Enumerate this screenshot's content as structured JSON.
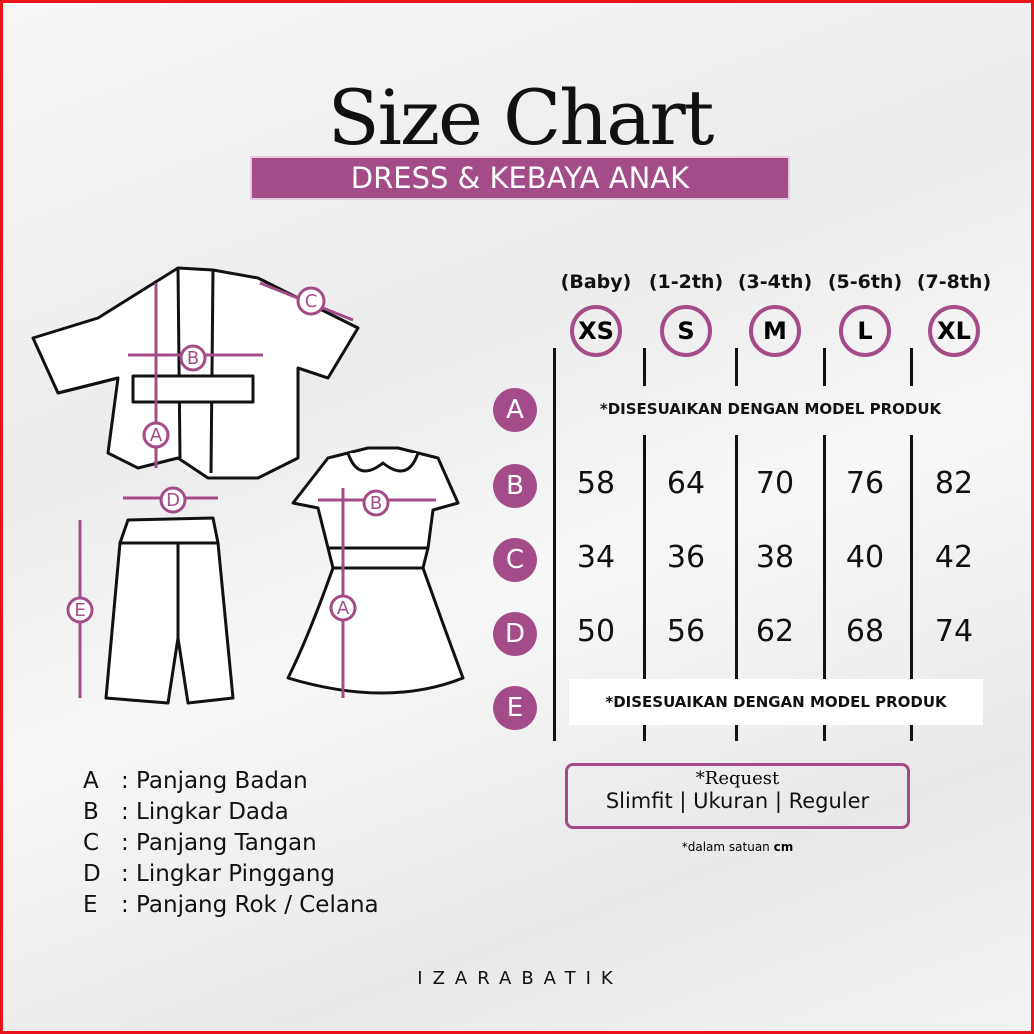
{
  "title": "Size Chart",
  "subtitle": "DRESS & KEBAYA ANAK",
  "colors": {
    "accent": "#a44c88",
    "frame": "#e8141b"
  },
  "sizes": [
    {
      "age": "(Baby)",
      "size": "XS"
    },
    {
      "age": "(1-2th)",
      "size": "S"
    },
    {
      "age": "(3-4th)",
      "size": "M"
    },
    {
      "age": "(5-6th)",
      "size": "L"
    },
    {
      "age": "(7-8th)",
      "size": "XL"
    }
  ],
  "rows": [
    {
      "label": "A",
      "note": "*DISESUAIKAN DENGAN MODEL PRODUK"
    },
    {
      "label": "B",
      "values": [
        "58",
        "64",
        "70",
        "76",
        "82"
      ]
    },
    {
      "label": "C",
      "values": [
        "34",
        "36",
        "38",
        "40",
        "42"
      ]
    },
    {
      "label": "D",
      "values": [
        "50",
        "56",
        "62",
        "68",
        "74"
      ]
    },
    {
      "label": "E",
      "note": "*DISESUAIKAN DENGAN MODEL PRODUK"
    }
  ],
  "request": {
    "title": "*Request",
    "options": "Slimfit |  Ukuran | Reguler"
  },
  "unit_note": {
    "text": "*dalam satuan ",
    "unit": "cm"
  },
  "legend": [
    {
      "key": "A",
      "label": ": Panjang Badan"
    },
    {
      "key": "B",
      "label": ": Lingkar Dada"
    },
    {
      "key": "C",
      "label": ": Panjang Tangan"
    },
    {
      "key": "D",
      "label": ": Lingkar Pinggang"
    },
    {
      "key": "E",
      "label": ": Panjang Rok / Celana"
    }
  ],
  "diagram_labels": {
    "a": "A",
    "b": "B",
    "c": "C",
    "d": "D",
    "e": "E"
  },
  "brand": "IZARABATIK"
}
